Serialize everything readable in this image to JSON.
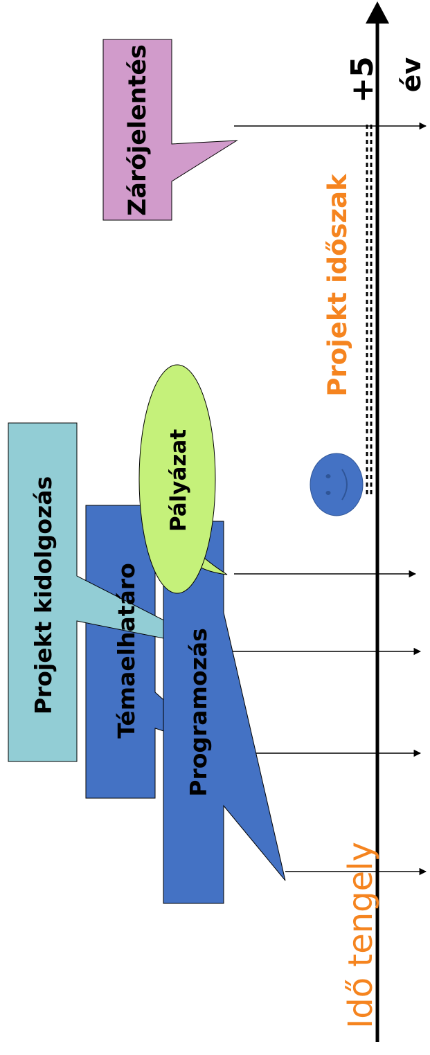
{
  "title": "",
  "axis": {
    "label": "Idő tengely",
    "end_label": "+5",
    "unit_label": "év"
  },
  "period": {
    "label": "Projekt időszak"
  },
  "callouts": {
    "programozas": "Programozás",
    "temaelhatarolas": "Témaelhatáro",
    "projekt_kidolgozas": "Projekt kidolgozás",
    "palyazat": "Pályázat",
    "zarojelentes": "Zárójelentés"
  },
  "icons": {
    "smiley": "smiley-face-icon"
  },
  "colors": {
    "accent_orange": "#f5841f",
    "box_blue": "#4472c4",
    "box_teal": "#92cdd5",
    "box_mauve": "#d19bcb",
    "ellipse_green": "#c5f17a",
    "smiley_blue": "#4472c4"
  }
}
